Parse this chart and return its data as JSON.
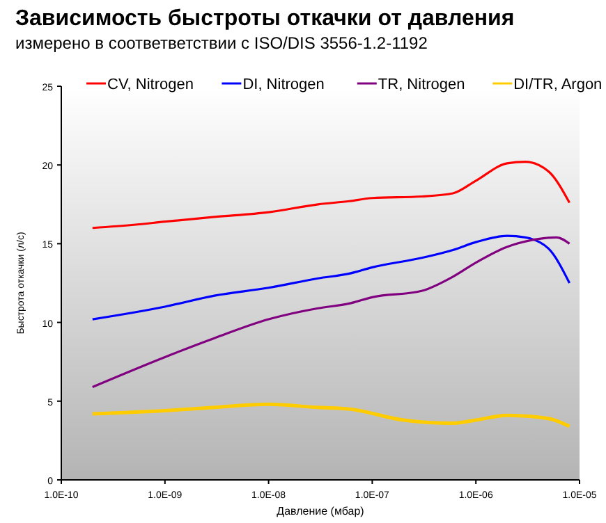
{
  "chart_data": {
    "type": "line",
    "title": "Зависимость быстроты откачки от давления",
    "subtitle": "измерено в соответветствии с  ISO/DIS 3556-1.2-1192",
    "xlabel": "Давление (мбар)",
    "ylabel": "Быстрота откачки (л/с)",
    "log": "x",
    "xlim": [
      1e-10,
      1e-05
    ],
    "xticks": [
      {
        "value": 1e-10,
        "label": "1.0E-10"
      },
      {
        "value": 1e-09,
        "label": "1.0E-09"
      },
      {
        "value": 1e-08,
        "label": "1.0E-08"
      },
      {
        "value": 1e-07,
        "label": "1.0E-07"
      },
      {
        "value": 1e-06,
        "label": "1.0E-06"
      },
      {
        "value": 1e-05,
        "label": "1.0E-05"
      }
    ],
    "ylim": [
      0,
      25
    ],
    "yticks": [
      0,
      5,
      10,
      15,
      20,
      25
    ],
    "legend": "top",
    "series": [
      {
        "name": "CV, Nitrogen",
        "color": "#ff0000",
        "x": [
          2e-10,
          5e-10,
          1e-09,
          3e-09,
          1e-08,
          3e-08,
          6e-08,
          1e-07,
          3e-07,
          6e-07,
          1e-06,
          2e-06,
          3e-06,
          5e-06,
          8e-06
        ],
        "values": [
          16.0,
          16.2,
          16.4,
          16.7,
          17.0,
          17.5,
          17.7,
          17.9,
          18.0,
          18.2,
          19.0,
          20.1,
          20.2,
          19.6,
          17.6
        ]
      },
      {
        "name": "DI, Nitrogen",
        "color": "#0000ff",
        "x": [
          2e-10,
          1e-09,
          3e-09,
          1e-08,
          3e-08,
          6e-08,
          1e-07,
          3e-07,
          6e-07,
          1e-06,
          2e-06,
          3e-06,
          5e-06,
          8e-06
        ],
        "values": [
          10.2,
          11.0,
          11.7,
          12.2,
          12.8,
          13.1,
          13.5,
          14.1,
          14.6,
          15.1,
          15.5,
          15.4,
          14.7,
          12.5
        ]
      },
      {
        "name": "TR, Nitrogen",
        "color": "#800080",
        "x": [
          2e-10,
          1e-09,
          3e-09,
          1e-08,
          3e-08,
          6e-08,
          1e-07,
          3e-07,
          6e-07,
          1e-06,
          2e-06,
          4e-06,
          6e-06,
          8e-06
        ],
        "values": [
          5.9,
          7.8,
          9.0,
          10.2,
          10.9,
          11.2,
          11.6,
          12.0,
          12.9,
          13.8,
          14.8,
          15.3,
          15.4,
          15.0
        ]
      },
      {
        "name": "DI/TR, Argon",
        "color": "#ffcc00",
        "x": [
          2e-10,
          1e-09,
          3e-09,
          1e-08,
          3e-08,
          6e-08,
          2e-07,
          6e-07,
          1e-06,
          2e-06,
          5e-06,
          8e-06
        ],
        "values": [
          4.2,
          4.4,
          4.6,
          4.8,
          4.6,
          4.5,
          3.8,
          3.6,
          3.8,
          4.1,
          3.9,
          3.4
        ]
      }
    ]
  }
}
